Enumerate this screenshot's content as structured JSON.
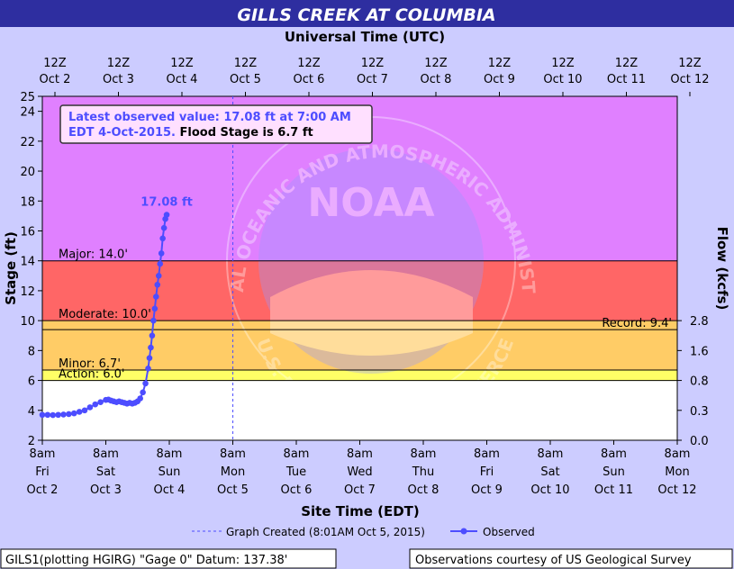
{
  "colors": {
    "title_bar": "#2e2ea0",
    "title_text": "#ffffff",
    "outer_bg": "#ccccff",
    "plot_white": "#ffffff",
    "action_band": "#ffff66",
    "minor_band": "#ffcc66",
    "moderate_band": "#ff6666",
    "major_band": "#e080ff",
    "series": "#4d4dff",
    "created_line": "#4d4dff",
    "axis_text": "#000000"
  },
  "chart_data": {
    "type": "line",
    "title": "GILLS CREEK AT COLUMBIA",
    "top_axis_label": "Universal Time (UTC)",
    "xlabel": "Site Time (EDT)",
    "ylabel": "Stage (ft)",
    "y2label": "Flow (kcfs)",
    "ylim": [
      2,
      25
    ],
    "y_ticks": [
      "2",
      "4",
      "6",
      "8",
      "10",
      "12",
      "14",
      "16",
      "18",
      "20",
      "22",
      "24",
      "25"
    ],
    "y2_ticks": [
      {
        "stage": 2,
        "label": "0.0"
      },
      {
        "stage": 4,
        "label": "0.3"
      },
      {
        "stage": 6,
        "label": "0.8"
      },
      {
        "stage": 8,
        "label": "1.6"
      },
      {
        "stage": 10,
        "label": "2.8"
      }
    ],
    "x_range_days": [
      "Oct 2 8am",
      "Oct 12 8am"
    ],
    "x_ticks_bottom": [
      {
        "time": "8am",
        "day": "Fri",
        "date": "Oct 2"
      },
      {
        "time": "8am",
        "day": "Sat",
        "date": "Oct 3"
      },
      {
        "time": "8am",
        "day": "Sun",
        "date": "Oct 4"
      },
      {
        "time": "8am",
        "day": "Mon",
        "date": "Oct 5"
      },
      {
        "time": "8am",
        "day": "Tue",
        "date": "Oct 6"
      },
      {
        "time": "8am",
        "day": "Wed",
        "date": "Oct 7"
      },
      {
        "time": "8am",
        "day": "Thu",
        "date": "Oct 8"
      },
      {
        "time": "8am",
        "day": "Fri",
        "date": "Oct 9"
      },
      {
        "time": "8am",
        "day": "Sat",
        "date": "Oct 10"
      },
      {
        "time": "8am",
        "day": "Sun",
        "date": "Oct 11"
      },
      {
        "time": "8am",
        "day": "Mon",
        "date": "Oct 12"
      }
    ],
    "x_ticks_top": [
      {
        "time": "12Z",
        "date": "Oct 2"
      },
      {
        "time": "12Z",
        "date": "Oct 3"
      },
      {
        "time": "12Z",
        "date": "Oct 4"
      },
      {
        "time": "12Z",
        "date": "Oct 5"
      },
      {
        "time": "12Z",
        "date": "Oct 6"
      },
      {
        "time": "12Z",
        "date": "Oct 7"
      },
      {
        "time": "12Z",
        "date": "Oct 8"
      },
      {
        "time": "12Z",
        "date": "Oct 9"
      },
      {
        "time": "12Z",
        "date": "Oct 10"
      },
      {
        "time": "12Z",
        "date": "Oct 11"
      },
      {
        "time": "12Z",
        "date": "Oct 12"
      }
    ],
    "flood_levels": [
      {
        "label": "Action: 6.0'",
        "value": 6.0
      },
      {
        "label": "Minor: 6.7'",
        "value": 6.7
      },
      {
        "label": "Moderate: 10.0'",
        "value": 10.0
      },
      {
        "label": "Major: 14.0'",
        "value": 14.0
      },
      {
        "label": "Record: 9.4'",
        "value": 9.4
      }
    ],
    "info_box": {
      "line1": "Latest observed value: 17.08 ft at 7:00 AM",
      "line2_a": "EDT 4-Oct-2015.",
      "line2_b": " Flood Stage is 6.7 ft"
    },
    "peak_label": "17.08 ft",
    "graph_created_x": "Oct 5 8:01am",
    "series": [
      {
        "name": "Observed",
        "x": [
          "Oct 2 08:00",
          "Oct 2 10:00",
          "Oct 2 12:00",
          "Oct 2 14:00",
          "Oct 2 16:00",
          "Oct 2 18:00",
          "Oct 2 20:00",
          "Oct 2 22:00",
          "Oct 3 00:00",
          "Oct 3 02:00",
          "Oct 3 04:00",
          "Oct 3 06:00",
          "Oct 3 08:00",
          "Oct 3 09:00",
          "Oct 3 10:00",
          "Oct 3 11:00",
          "Oct 3 12:00",
          "Oct 3 13:00",
          "Oct 3 14:00",
          "Oct 3 15:00",
          "Oct 3 16:00",
          "Oct 3 17:00",
          "Oct 3 18:00",
          "Oct 3 19:00",
          "Oct 3 20:00",
          "Oct 3 21:00",
          "Oct 3 22:00",
          "Oct 3 23:00",
          "Oct 4 00:00",
          "Oct 4 00:30",
          "Oct 4 01:00",
          "Oct 4 01:30",
          "Oct 4 02:00",
          "Oct 4 02:30",
          "Oct 4 03:00",
          "Oct 4 03:30",
          "Oct 4 04:00",
          "Oct 4 04:30",
          "Oct 4 05:00",
          "Oct 4 05:30",
          "Oct 4 06:00",
          "Oct 4 06:30",
          "Oct 4 07:00"
        ],
        "values": [
          3.7,
          3.7,
          3.68,
          3.7,
          3.72,
          3.75,
          3.8,
          3.9,
          4.0,
          4.2,
          4.4,
          4.55,
          4.7,
          4.72,
          4.65,
          4.6,
          4.55,
          4.6,
          4.55,
          4.5,
          4.45,
          4.5,
          4.45,
          4.5,
          4.6,
          4.8,
          5.2,
          5.8,
          6.8,
          7.5,
          8.2,
          9.0,
          10.0,
          10.8,
          11.6,
          12.4,
          13.0,
          13.8,
          14.5,
          15.5,
          16.2,
          16.8,
          17.08
        ]
      }
    ],
    "legend": {
      "created_label": "Graph Created (8:01AM Oct 5, 2015)",
      "observed_label": "Observed"
    },
    "footer_left": "GILS1(plotting HGIRG) \"Gage 0\" Datum: 137.38'",
    "footer_right": "Observations courtesy of US Geological Survey",
    "watermark": {
      "logo_text": "NOAA",
      "ring_top": "NATIONAL OCEANIC AND ATMOSPHERIC ADMINISTRATION",
      "ring_bottom": "U.S. DEPARTMENT OF COMMERCE"
    }
  }
}
